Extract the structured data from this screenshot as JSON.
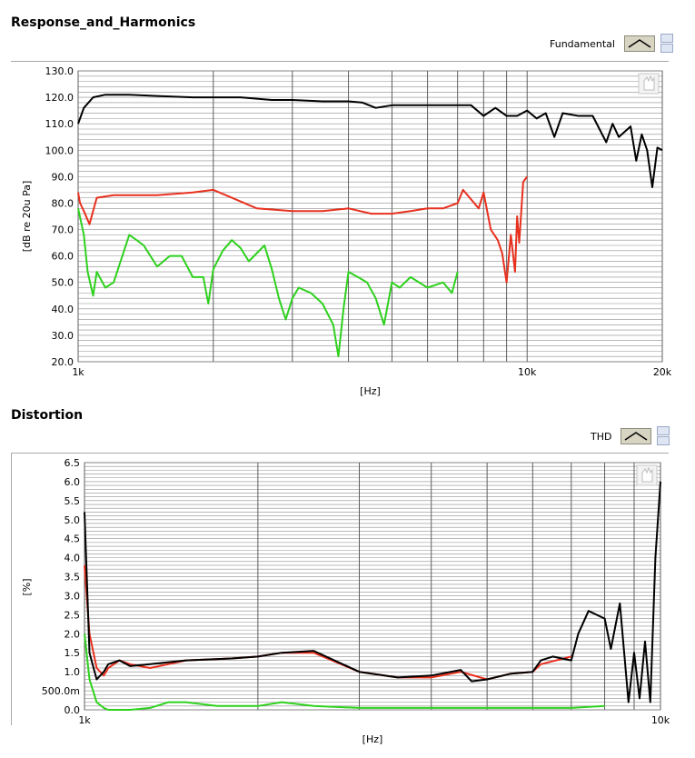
{
  "chart_data": [
    {
      "type": "line",
      "title": "Response_and_Harmonics",
      "legend_label": "Fundamental",
      "ylabel": "[dB re 20u Pa]",
      "xlabel": "[Hz]",
      "xscale": "log",
      "xlim": [
        1000,
        20000
      ],
      "ylim": [
        20,
        130
      ],
      "x_ticks": [
        {
          "v": 1000,
          "label": "1k"
        },
        {
          "v": 10000,
          "label": "10k"
        },
        {
          "v": 20000,
          "label": "20k"
        }
      ],
      "y_ticks": [
        {
          "v": 20,
          "label": "20.0"
        },
        {
          "v": 30,
          "label": "30.0"
        },
        {
          "v": 40,
          "label": "40.0"
        },
        {
          "v": 50,
          "label": "50.0"
        },
        {
          "v": 60,
          "label": "60.0"
        },
        {
          "v": 70,
          "label": "70.0"
        },
        {
          "v": 80,
          "label": "80.0"
        },
        {
          "v": 90,
          "label": "90.0"
        },
        {
          "v": 100,
          "label": "100.0"
        },
        {
          "v": 110,
          "label": "110.0"
        },
        {
          "v": 120,
          "label": "120.0"
        },
        {
          "v": 130,
          "label": "130.0"
        }
      ],
      "series": [
        {
          "color": "#000000",
          "x": [
            1000,
            1030,
            1080,
            1150,
            1300,
            1500,
            1800,
            2000,
            2300,
            2700,
            3000,
            3500,
            4000,
            4300,
            4600,
            5000,
            5500,
            6000,
            7000,
            7500,
            8000,
            8500,
            9000,
            9500,
            10000,
            10500,
            11000,
            11500,
            12000,
            13000,
            14000,
            15000,
            15500,
            16000,
            17000,
            17500,
            18000,
            18500,
            19000,
            19500,
            20000
          ],
          "y": [
            110,
            116,
            120,
            121,
            121,
            120.5,
            120,
            120,
            120,
            119,
            119,
            118.5,
            118.5,
            118,
            116,
            117,
            117,
            117,
            117,
            117,
            113,
            116,
            113,
            113,
            115,
            112,
            114,
            105,
            114,
            113,
            113,
            103,
            110,
            105,
            109,
            96,
            106,
            100,
            86,
            101,
            100
          ]
        },
        {
          "color": "#e8301e",
          "x": [
            1000,
            1010,
            1030,
            1060,
            1100,
            1200,
            1500,
            1800,
            2000,
            2200,
            2500,
            3000,
            3500,
            4000,
            4500,
            5000,
            5500,
            6000,
            6500,
            7000,
            7200,
            7800,
            8000,
            8300,
            8600,
            8800,
            9000,
            9200,
            9400,
            9500,
            9600,
            9800,
            10000
          ],
          "y": [
            84,
            80,
            77,
            72,
            82,
            83,
            83,
            84,
            85,
            82,
            78,
            77,
            77,
            78,
            76,
            76,
            77,
            78,
            78,
            80,
            85,
            78,
            84,
            70,
            66,
            61,
            50,
            68,
            54,
            75,
            65,
            88,
            90
          ]
        },
        {
          "color": "#2ed11e",
          "x": [
            1000,
            1030,
            1050,
            1080,
            1100,
            1150,
            1200,
            1300,
            1350,
            1400,
            1500,
            1600,
            1700,
            1800,
            1900,
            1950,
            2000,
            2100,
            2200,
            2300,
            2400,
            2600,
            2700,
            2800,
            2900,
            3000,
            3100,
            3300,
            3500,
            3700,
            3800,
            3900,
            4000,
            4200,
            4400,
            4600,
            4800,
            5000,
            5200,
            5500,
            6000,
            6500,
            6800,
            7000
          ],
          "y": [
            78,
            68,
            54,
            45,
            54,
            48,
            50,
            68,
            66,
            64,
            56,
            60,
            60,
            52,
            52,
            42,
            55,
            62,
            66,
            63,
            58,
            64,
            55,
            44,
            36,
            44,
            48,
            46,
            42,
            34,
            22,
            40,
            54,
            52,
            50,
            44,
            34,
            50,
            48,
            52,
            48,
            50,
            46,
            54
          ]
        }
      ]
    },
    {
      "type": "line",
      "title": "Distortion",
      "legend_label": "THD",
      "ylabel": "[%]",
      "xlabel": "[Hz]",
      "xscale": "log",
      "xlim": [
        1000,
        10000
      ],
      "ylim": [
        0,
        6.5
      ],
      "x_ticks": [
        {
          "v": 1000,
          "label": "1k"
        },
        {
          "v": 10000,
          "label": "10k"
        }
      ],
      "y_ticks": [
        {
          "v": 0,
          "label": "0.0"
        },
        {
          "v": 0.5,
          "label": "500.0m"
        },
        {
          "v": 1,
          "label": "1.0"
        },
        {
          "v": 1.5,
          "label": "1.5"
        },
        {
          "v": 2,
          "label": "2.0"
        },
        {
          "v": 2.5,
          "label": "2.5"
        },
        {
          "v": 3,
          "label": "3.0"
        },
        {
          "v": 3.5,
          "label": "3.5"
        },
        {
          "v": 4,
          "label": "4.0"
        },
        {
          "v": 4.5,
          "label": "4.5"
        },
        {
          "v": 5,
          "label": "5.0"
        },
        {
          "v": 5.5,
          "label": "5.5"
        },
        {
          "v": 6,
          "label": "6.0"
        },
        {
          "v": 6.5,
          "label": "6.5"
        }
      ],
      "series": [
        {
          "color": "#e8301e",
          "x": [
            1000,
            1020,
            1050,
            1080,
            1100,
            1150,
            1200,
            1300,
            1500,
            1800,
            2000,
            2200,
            2500,
            3000,
            3500,
            4000,
            4500,
            5000,
            5500,
            6000,
            6200,
            7000
          ],
          "y": [
            3.8,
            2.0,
            1.1,
            0.9,
            1.1,
            1.3,
            1.2,
            1.1,
            1.3,
            1.35,
            1.4,
            1.5,
            1.5,
            1.0,
            0.85,
            0.85,
            1.0,
            0.8,
            0.95,
            1.0,
            1.2,
            1.4
          ]
        },
        {
          "color": "#2ed11e",
          "x": [
            1000,
            1020,
            1050,
            1080,
            1100,
            1200,
            1300,
            1400,
            1500,
            1700,
            2000,
            2200,
            2500,
            3000,
            4000,
            5000,
            6000,
            7000,
            8000
          ],
          "y": [
            2.0,
            0.8,
            0.2,
            0.05,
            0.0,
            0.0,
            0.05,
            0.2,
            0.2,
            0.1,
            0.1,
            0.2,
            0.1,
            0.05,
            0.05,
            0.05,
            0.05,
            0.05,
            0.1
          ]
        },
        {
          "color": "#000000",
          "x": [
            1000,
            1020,
            1050,
            1080,
            1100,
            1150,
            1200,
            1300,
            1500,
            1800,
            2000,
            2200,
            2500,
            3000,
            3500,
            4000,
            4500,
            4700,
            5000,
            5500,
            6000,
            6200,
            6500,
            7000,
            7200,
            7500,
            8000,
            8200,
            8500,
            8800,
            9000,
            9200,
            9400,
            9600,
            9800,
            10000
          ],
          "y": [
            5.2,
            1.5,
            0.8,
            1.0,
            1.2,
            1.3,
            1.15,
            1.2,
            1.3,
            1.35,
            1.4,
            1.5,
            1.55,
            1.0,
            0.85,
            0.9,
            1.05,
            0.75,
            0.8,
            0.95,
            1.0,
            1.3,
            1.4,
            1.3,
            2.0,
            2.6,
            2.4,
            1.6,
            2.8,
            0.2,
            1.5,
            0.3,
            1.8,
            0.2,
            4.0,
            6.0
          ]
        }
      ]
    }
  ]
}
